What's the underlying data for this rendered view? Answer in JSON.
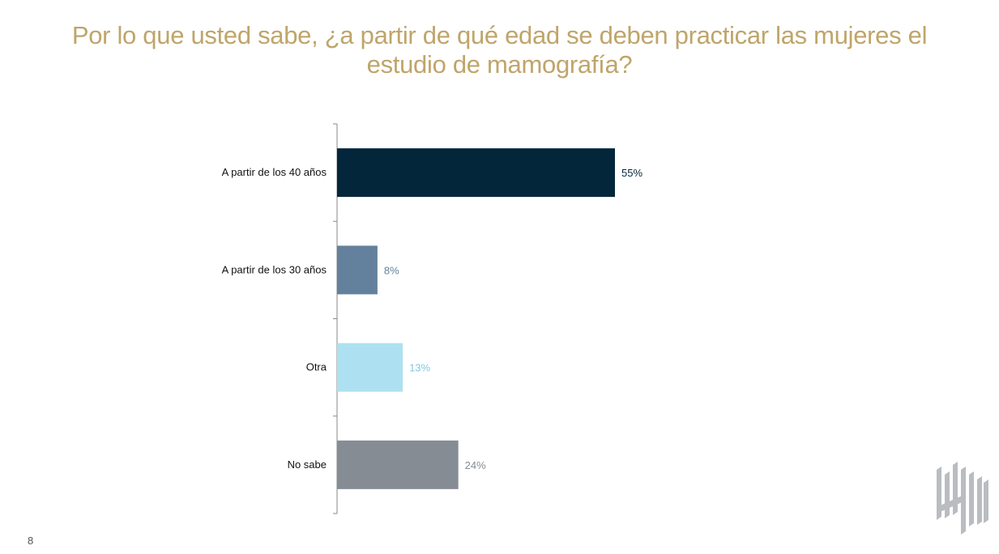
{
  "slide": {
    "title": "Por lo que usted sabe, ¿a partir de qué edad se deben practicar las mujeres el estudio de mamografía?",
    "page_number": "8",
    "logo_icon": "brand-logo-icon"
  },
  "colors": {
    "title": "#bfa56a",
    "axis": "#888888"
  },
  "chart_data": {
    "type": "bar",
    "orientation": "horizontal",
    "title": "Por lo que usted sabe, ¿a partir de qué edad se deben practicar las mujeres el estudio de mamografía?",
    "xlabel": "",
    "ylabel": "",
    "xlim": [
      0,
      100
    ],
    "grid": false,
    "legend": "none",
    "categories": [
      "A partir de los 40 años",
      "A partir de los 30 años",
      "Otra",
      "No sabe"
    ],
    "values": [
      55,
      8,
      13,
      24
    ],
    "value_labels": [
      "55%",
      "8%",
      "13%",
      "24%"
    ],
    "bar_colors": [
      "#03263b",
      "#63819c",
      "#ade1f1",
      "#858c94"
    ],
    "label_colors": [
      "#03263b",
      "#63819c",
      "#7fc9e2",
      "#858c94"
    ]
  }
}
